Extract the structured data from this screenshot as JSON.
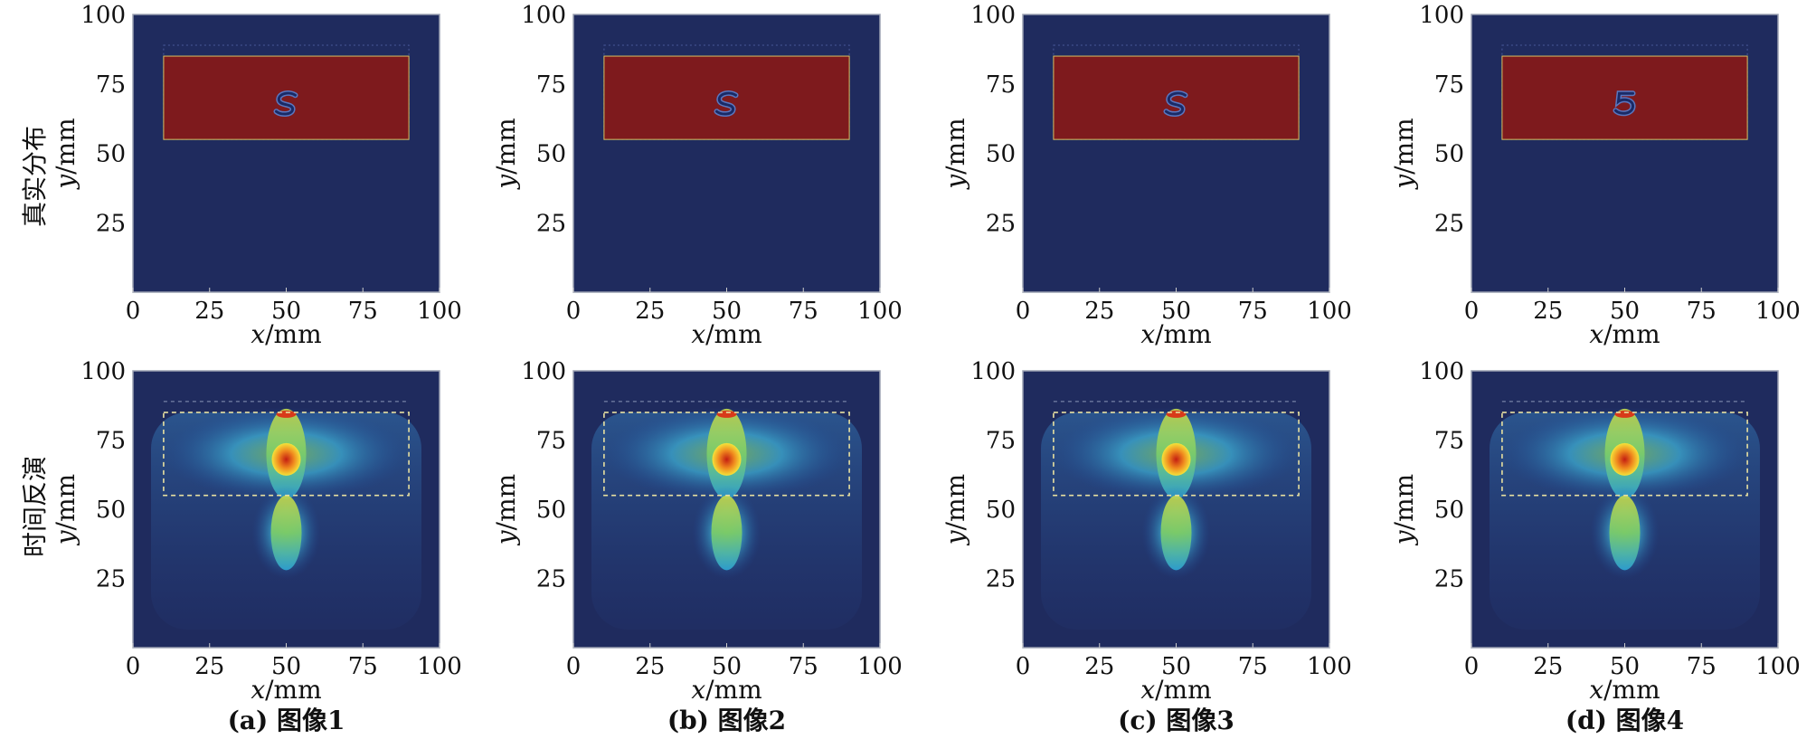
{
  "row_labels": [
    "真实分布",
    "时间反演"
  ],
  "captions": [
    "(a) 图像1",
    "(b) 图像2",
    "(c) 图像3",
    "(d) 图像4"
  ],
  "colors": {
    "background": "#1f2b5e",
    "rectangle_fill": "#7e1a1d",
    "rectangle_edge": "#d8c060",
    "inversion_dashed_box": "#e8e0a0"
  },
  "chart_data": [
    {
      "panel": "a-top",
      "type": "heatmap",
      "xlabel": "x/mm",
      "ylabel": "y/mm",
      "xlim": [
        0,
        100
      ],
      "ylim": [
        0,
        100
      ],
      "xticks": [
        0,
        25,
        50,
        75,
        100
      ],
      "yticks": [
        25,
        50,
        75,
        100
      ],
      "rectangle": {
        "x": [
          10,
          90
        ],
        "y": [
          55,
          85
        ]
      },
      "shape": "S",
      "shape_center": [
        50,
        68
      ]
    },
    {
      "panel": "b-top",
      "type": "heatmap",
      "xlabel": "x/mm",
      "ylabel": "y/mm",
      "xlim": [
        0,
        100
      ],
      "ylim": [
        0,
        100
      ],
      "xticks": [
        0,
        25,
        50,
        75,
        100
      ],
      "yticks": [
        25,
        50,
        75,
        100
      ],
      "rectangle": {
        "x": [
          10,
          90
        ],
        "y": [
          55,
          85
        ]
      },
      "shape": "S",
      "shape_center": [
        50,
        68
      ]
    },
    {
      "panel": "c-top",
      "type": "heatmap",
      "xlabel": "x/mm",
      "ylabel": "y/mm",
      "xlim": [
        0,
        100
      ],
      "ylim": [
        0,
        100
      ],
      "xticks": [
        0,
        25,
        50,
        75,
        100
      ],
      "yticks": [
        25,
        50,
        75,
        100
      ],
      "rectangle": {
        "x": [
          10,
          90
        ],
        "y": [
          55,
          85
        ]
      },
      "shape": "S",
      "shape_center": [
        50,
        68
      ]
    },
    {
      "panel": "d-top",
      "type": "heatmap",
      "xlabel": "x/mm",
      "ylabel": "y/mm",
      "xlim": [
        0,
        100
      ],
      "ylim": [
        0,
        100
      ],
      "xticks": [
        0,
        25,
        50,
        75,
        100
      ],
      "yticks": [
        25,
        50,
        75,
        100
      ],
      "rectangle": {
        "x": [
          10,
          90
        ],
        "y": [
          55,
          85
        ]
      },
      "shape": "5",
      "shape_center": [
        50,
        68
      ]
    },
    {
      "panel": "a-bottom",
      "type": "heatmap",
      "xlabel": "x/mm",
      "ylabel": "y/mm",
      "xlim": [
        0,
        100
      ],
      "ylim": [
        0,
        100
      ],
      "xticks": [
        0,
        25,
        50,
        75,
        100
      ],
      "yticks": [
        25,
        50,
        75,
        100
      ],
      "dashed_box": {
        "x": [
          10,
          90
        ],
        "y": [
          55,
          85
        ]
      },
      "peak": [
        50,
        68
      ]
    },
    {
      "panel": "b-bottom",
      "type": "heatmap",
      "xlabel": "x/mm",
      "ylabel": "y/mm",
      "xlim": [
        0,
        100
      ],
      "ylim": [
        0,
        100
      ],
      "xticks": [
        0,
        25,
        50,
        75,
        100
      ],
      "yticks": [
        25,
        50,
        75,
        100
      ],
      "dashed_box": {
        "x": [
          10,
          90
        ],
        "y": [
          55,
          85
        ]
      },
      "peak": [
        50,
        68
      ]
    },
    {
      "panel": "c-bottom",
      "type": "heatmap",
      "xlabel": "x/mm",
      "ylabel": "y/mm",
      "xlim": [
        0,
        100
      ],
      "ylim": [
        0,
        100
      ],
      "xticks": [
        0,
        25,
        50,
        75,
        100
      ],
      "yticks": [
        25,
        50,
        75,
        100
      ],
      "dashed_box": {
        "x": [
          10,
          90
        ],
        "y": [
          55,
          85
        ]
      },
      "peak": [
        50,
        68
      ]
    },
    {
      "panel": "d-bottom",
      "type": "heatmap",
      "xlabel": "x/mm",
      "ylabel": "y/mm",
      "xlim": [
        0,
        100
      ],
      "ylim": [
        0,
        100
      ],
      "xticks": [
        0,
        25,
        50,
        75,
        100
      ],
      "yticks": [
        25,
        50,
        75,
        100
      ],
      "dashed_box": {
        "x": [
          10,
          90
        ],
        "y": [
          55,
          85
        ]
      },
      "peak": [
        50,
        68
      ]
    }
  ]
}
